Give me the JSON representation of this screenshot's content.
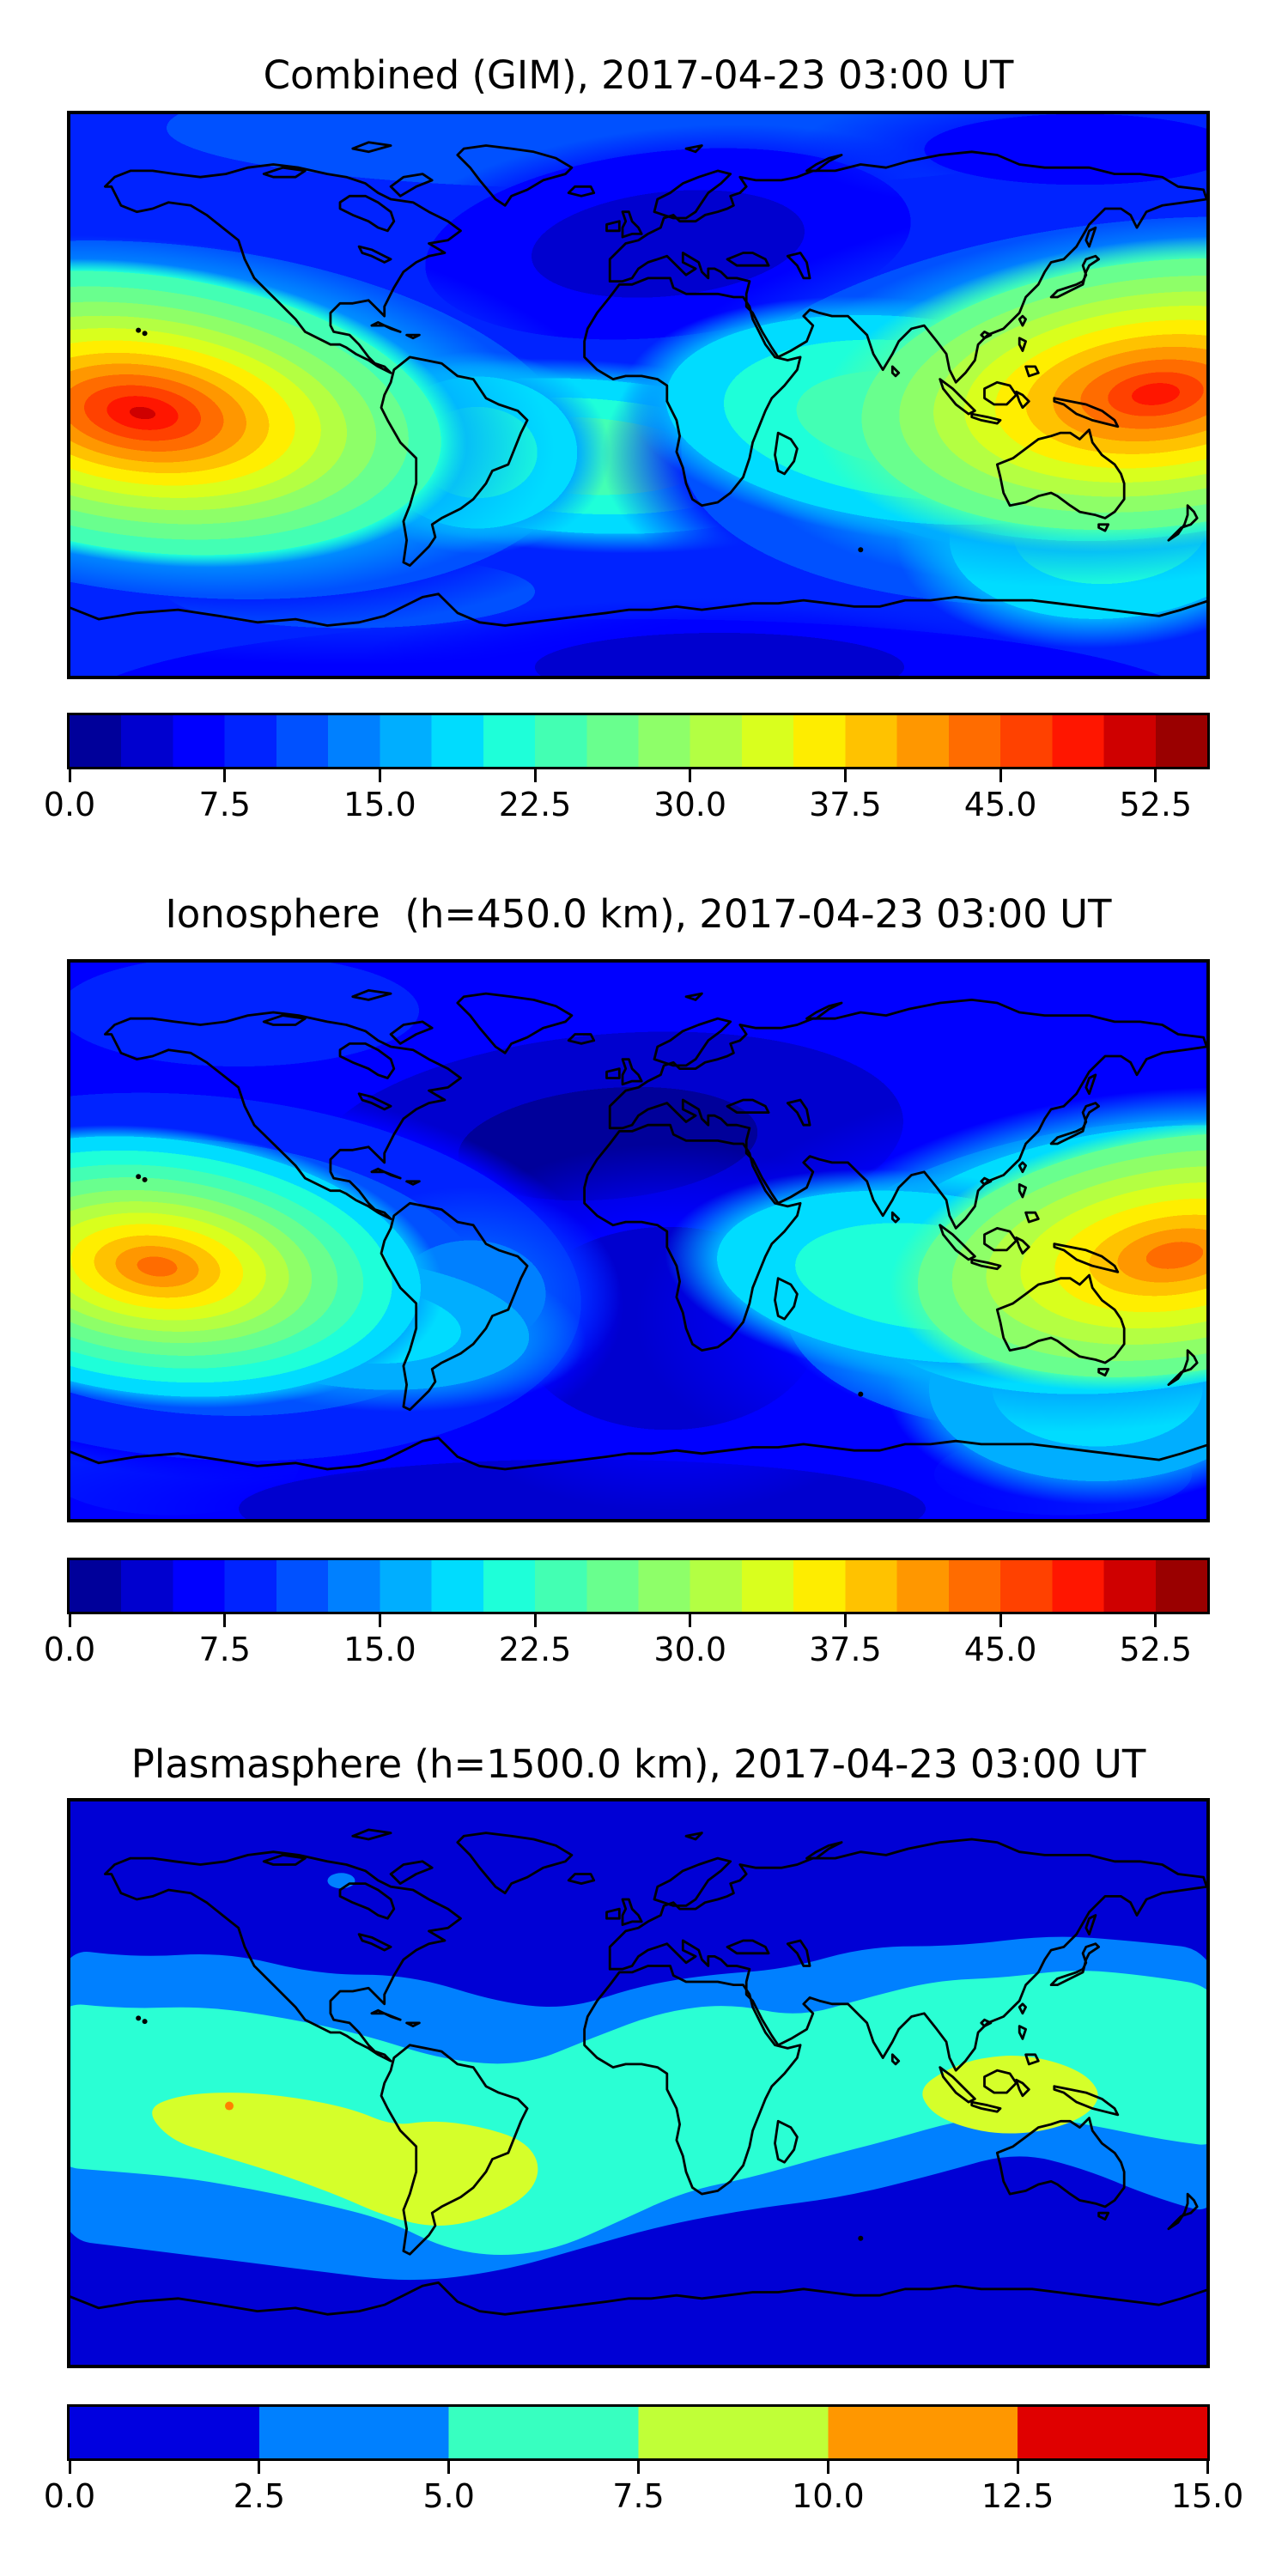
{
  "figure": {
    "background": "#ffffff",
    "text_color": "#000000",
    "colormap": "jet"
  },
  "panels": [
    {
      "title": "Combined (GIM), 2017-04-23 03:00 UT",
      "vmin": 0,
      "vmax": 55,
      "n_colors": 22,
      "tick_labels": [
        "0.0",
        "7.5",
        "15.0",
        "22.5",
        "30.0",
        "37.5",
        "45.0",
        "52.5"
      ]
    },
    {
      "title": "Ionosphere  (h=450.0 km), 2017-04-23 03:00 UT",
      "vmin": 0,
      "vmax": 55,
      "n_colors": 22,
      "tick_labels": [
        "0.0",
        "7.5",
        "15.0",
        "22.5",
        "30.0",
        "37.5",
        "45.0",
        "52.5"
      ]
    },
    {
      "title": "Plasmasphere (h=1500.0 km), 2017-04-23 03:00 UT",
      "vmin": 0,
      "vmax": 15,
      "n_colors": 6,
      "tick_labels": [
        "0.0",
        "2.5",
        "5.0",
        "7.5",
        "10.0",
        "12.5",
        "15.0"
      ]
    }
  ],
  "chart_data": [
    {
      "type": "heatmap",
      "title": "Combined (GIM), 2017-04-23 03:00 UT",
      "projection": "equirectangular world map, lon -180..180, lat -90..90, coastlines in black",
      "colormap": "jet",
      "levels": {
        "min": 0,
        "max": 55,
        "step": 2.5
      },
      "colorbar_ticks": [
        0.0,
        7.5,
        15.0,
        22.5,
        30.0,
        37.5,
        45.0,
        52.5
      ],
      "legend_position": "horizontal colorbar below map",
      "features": [
        {
          "name": "equatorial-anomaly-peak-central-pacific",
          "lon": -155,
          "lat": -5,
          "approx_value": 51
        },
        {
          "name": "equatorial-anomaly-peak-west-pacific-sea",
          "lon": 150,
          "lat": 0,
          "approx_value": 50
        },
        {
          "name": "elevated-band-southeast-asia-to-india",
          "lon": 110,
          "lat": 5,
          "approx_value": 35
        },
        {
          "name": "cyan-patch-south-america",
          "lon": -50,
          "lat": -20,
          "approx_value": 20
        },
        {
          "name": "minimum-north-atlantic-europe",
          "lon": -20,
          "lat": 50,
          "approx_value": 4
        }
      ]
    },
    {
      "type": "heatmap",
      "title": "Ionosphere  (h=450.0 km), 2017-04-23 03:00 UT",
      "projection": "equirectangular world map, lon -180..180, lat -90..90, coastlines in black",
      "colormap": "jet",
      "levels": {
        "min": 0,
        "max": 55,
        "step": 2.5
      },
      "colorbar_ticks": [
        0.0,
        7.5,
        15.0,
        22.5,
        30.0,
        37.5,
        45.0,
        52.5
      ],
      "legend_position": "horizontal colorbar below map",
      "features": [
        {
          "name": "equatorial-anomaly-peak-central-pacific",
          "lon": -155,
          "lat": -8,
          "approx_value": 42
        },
        {
          "name": "equatorial-anomaly-peak-west-pacific",
          "lon": 168,
          "lat": -2,
          "approx_value": 42
        },
        {
          "name": "elevated-band-philippines-indonesia",
          "lon": 120,
          "lat": 5,
          "approx_value": 33
        },
        {
          "name": "deep-minimum-europe-africa-atlantic",
          "lon": 10,
          "lat": 30,
          "approx_value": 2
        }
      ]
    },
    {
      "type": "heatmap",
      "title": "Plasmasphere (h=1500.0 km), 2017-04-23 03:00 UT",
      "projection": "equirectangular world map, lon -180..180, lat -90..90, coastlines in black",
      "colormap": "jet",
      "levels": {
        "min": 0,
        "max": 15,
        "step": 2.5
      },
      "colorbar_ticks": [
        0.0,
        2.5,
        5.0,
        7.5,
        10.0,
        12.5,
        15.0
      ],
      "legend_position": "horizontal colorbar below map",
      "features": [
        {
          "name": "polar-minimum-bands-north-and-south",
          "approx_value": 1.5
        },
        {
          "name": "midlatitude-band",
          "approx_value": 3.5
        },
        {
          "name": "broad-equatorial-belt",
          "approx_value": 6
        },
        {
          "name": "enhanced-blob-east-pacific-south-america",
          "lon": -110,
          "lat": -25,
          "approx_value": 8.5
        },
        {
          "name": "enhanced-blob-southeast-asia",
          "lon": 118,
          "lat": 7,
          "approx_value": 8.5
        },
        {
          "name": "small-peak-spot-central-pacific",
          "lon": -129,
          "lat": -7,
          "approx_value": 11
        }
      ]
    }
  ]
}
